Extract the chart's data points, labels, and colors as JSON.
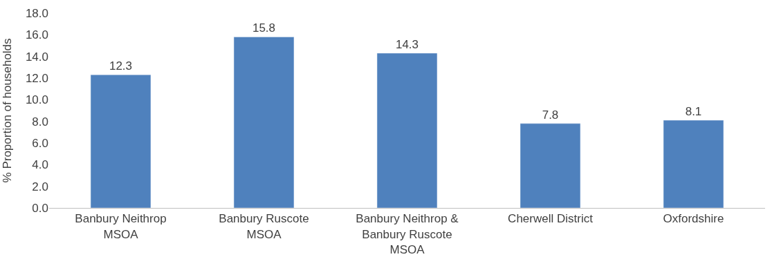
{
  "chart_data": {
    "type": "bar",
    "ylabel": "% Proportion of households",
    "categories": [
      "Banbury Neithrop MSOA",
      "Banbury Ruscote MSOA",
      "Banbury Neithrop & Banbury Ruscote MSOA",
      "Cherwell District",
      "Oxfordshire"
    ],
    "values": [
      12.3,
      15.8,
      14.3,
      7.8,
      8.1
    ],
    "color": "#4f81bd",
    "ylim": [
      0,
      18
    ],
    "yticks": [
      {
        "value": 0,
        "label": "0.0"
      },
      {
        "value": 2,
        "label": "2.0"
      },
      {
        "value": 4,
        "label": "4.0"
      },
      {
        "value": 6,
        "label": "6.0"
      },
      {
        "value": 8,
        "label": "8.0"
      },
      {
        "value": 10,
        "label": "10.0"
      },
      {
        "value": 12,
        "label": "12.0"
      },
      {
        "value": 14,
        "label": "14.0"
      },
      {
        "value": 16,
        "label": "16.0"
      },
      {
        "value": 18,
        "label": "18.0"
      }
    ],
    "data_labels": true,
    "legend": false
  }
}
